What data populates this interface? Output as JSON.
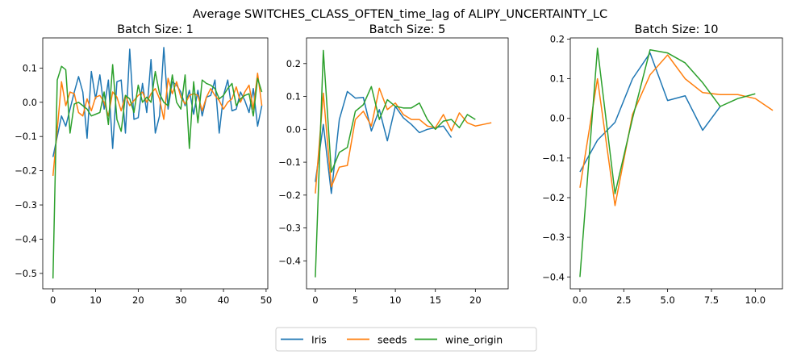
{
  "figure": {
    "title": "Average SWITCHES_CLASS_OFTEN_time_lag of ALIPY_UNCERTAINTY_LC",
    "legend": [
      "Iris",
      "seeds",
      "wine_origin"
    ],
    "colors": {
      "Iris": "#1f77b4",
      "seeds": "#ff7f0e",
      "wine_origin": "#2ca02c"
    }
  },
  "chart_data": [
    {
      "type": "line",
      "title": "Batch Size: 1",
      "xlim": [
        -2.4,
        50.4
      ],
      "ylim": [
        -0.545,
        0.188
      ],
      "xticks": [
        0,
        10,
        20,
        30,
        40,
        50
      ],
      "yticks": [
        -0.5,
        -0.4,
        -0.3,
        -0.2,
        -0.1,
        0.0,
        0.1
      ],
      "ytick_labels": [
        "−0.5",
        "−0.4",
        "−0.3",
        "−0.2",
        "−0.1",
        "0.0",
        "0.1"
      ],
      "series": [
        {
          "name": "Iris",
          "values": [
            -0.16,
            -0.1,
            -0.04,
            -0.07,
            -0.02,
            0.03,
            0.075,
            0.03,
            -0.105,
            0.09,
            0.01,
            0.08,
            -0.02,
            0.065,
            -0.135,
            0.06,
            0.065,
            -0.09,
            0.155,
            -0.05,
            -0.045,
            0.055,
            -0.03,
            0.125,
            -0.09,
            -0.04,
            0.16,
            -0.02,
            0.06,
            0.05,
            0.03,
            -0.01,
            0.035,
            -0.035,
            0.035,
            -0.04,
            0.015,
            0.02,
            0.065,
            -0.09,
            0.02,
            0.065,
            -0.025,
            -0.02,
            0.03,
            0.005,
            -0.03,
            0.04,
            -0.07,
            -0.01
          ]
        },
        {
          "name": "seeds",
          "values": [
            -0.215,
            -0.08,
            0.06,
            -0.01,
            0.03,
            0.025,
            -0.03,
            -0.04,
            0.01,
            -0.025,
            0.015,
            0.02,
            0.0,
            -0.04,
            0.03,
            0.015,
            -0.025,
            0.02,
            -0.01,
            0.005,
            0.02,
            0.03,
            0.0,
            0.025,
            0.04,
            0.01,
            -0.05,
            0.07,
            0.025,
            0.06,
            0.015,
            -0.005,
            0.02,
            0.025,
            0.02,
            -0.025,
            0.015,
            0.04,
            0.02,
            0.005,
            -0.02,
            0.0,
            0.01,
            0.045,
            0.0,
            0.03,
            0.05,
            -0.02,
            0.085,
            -0.01
          ]
        },
        {
          "name": "wine_origin",
          "values": [
            -0.515,
            0.065,
            0.105,
            0.095,
            -0.09,
            -0.005,
            0.0,
            -0.01,
            -0.02,
            -0.04,
            -0.035,
            -0.03,
            0.03,
            -0.065,
            0.11,
            -0.05,
            -0.085,
            0.02,
            0.01,
            -0.03,
            0.05,
            0.0,
            0.015,
            0.0,
            0.09,
            0.025,
            0.0,
            -0.01,
            0.08,
            0.0,
            -0.02,
            0.08,
            -0.135,
            0.06,
            -0.06,
            0.065,
            0.055,
            0.05,
            0.04,
            0.01,
            0.02,
            0.04,
            0.055,
            -0.01,
            0.01,
            0.02,
            0.025,
            -0.04,
            0.07,
            0.03
          ]
        }
      ]
    },
    {
      "type": "line",
      "title": "Batch Size: 5",
      "xlim": [
        -1.1,
        24.1
      ],
      "ylim": [
        -0.485,
        0.278
      ],
      "xticks": [
        0,
        5,
        10,
        15,
        20
      ],
      "yticks": [
        -0.4,
        -0.3,
        -0.2,
        -0.1,
        0.0,
        0.1,
        0.2
      ],
      "ytick_labels": [
        "−0.4",
        "−0.3",
        "−0.2",
        "−0.1",
        "0.0",
        "0.1",
        "0.2"
      ],
      "series": [
        {
          "name": "Iris",
          "values": [
            -0.16,
            0.015,
            -0.195,
            0.03,
            0.115,
            0.095,
            0.097,
            -0.005,
            0.06,
            -0.035,
            0.07,
            0.035,
            0.015,
            -0.01,
            0.0,
            0.005,
            0.01,
            -0.025
          ]
        },
        {
          "name": "seeds",
          "values": [
            -0.195,
            0.11,
            -0.175,
            -0.115,
            -0.11,
            0.03,
            0.055,
            0.01,
            0.125,
            0.06,
            0.08,
            0.045,
            0.03,
            0.03,
            0.01,
            0.005,
            0.045,
            -0.005,
            0.05,
            0.02,
            0.01,
            0.015,
            0.02
          ]
        },
        {
          "name": "wine_origin",
          "values": [
            -0.45,
            0.24,
            -0.13,
            -0.07,
            -0.055,
            0.055,
            0.075,
            0.13,
            0.03,
            0.09,
            0.07,
            0.065,
            0.065,
            0.08,
            0.03,
            0.0,
            0.025,
            0.03,
            0.005,
            0.045,
            0.03
          ]
        }
      ]
    },
    {
      "type": "line",
      "title": "Batch Size: 10",
      "xlim": [
        -0.55,
        11.55
      ],
      "ylim": [
        -0.43,
        0.203
      ],
      "xticks": [
        0.0,
        2.5,
        5.0,
        7.5,
        10.0
      ],
      "yticks": [
        -0.4,
        -0.3,
        -0.2,
        -0.1,
        0.0,
        0.1,
        0.2
      ],
      "ytick_labels": [
        "−0.4",
        "−0.3",
        "−0.2",
        "−0.1",
        "0.0",
        "0.1",
        "0.2"
      ],
      "series": [
        {
          "name": "Iris",
          "values": [
            -0.135,
            -0.055,
            -0.01,
            0.1,
            0.165,
            0.045,
            0.057,
            -0.03,
            0.03
          ]
        },
        {
          "name": "seeds",
          "values": [
            -0.175,
            0.1,
            -0.22,
            0.01,
            0.11,
            0.16,
            0.1,
            0.065,
            0.06,
            0.06,
            0.05,
            0.02
          ]
        },
        {
          "name": "wine_origin",
          "values": [
            -0.4,
            0.177,
            -0.19,
            0.0,
            0.173,
            0.165,
            0.14,
            0.09,
            0.03,
            0.05,
            0.062
          ]
        }
      ]
    }
  ]
}
